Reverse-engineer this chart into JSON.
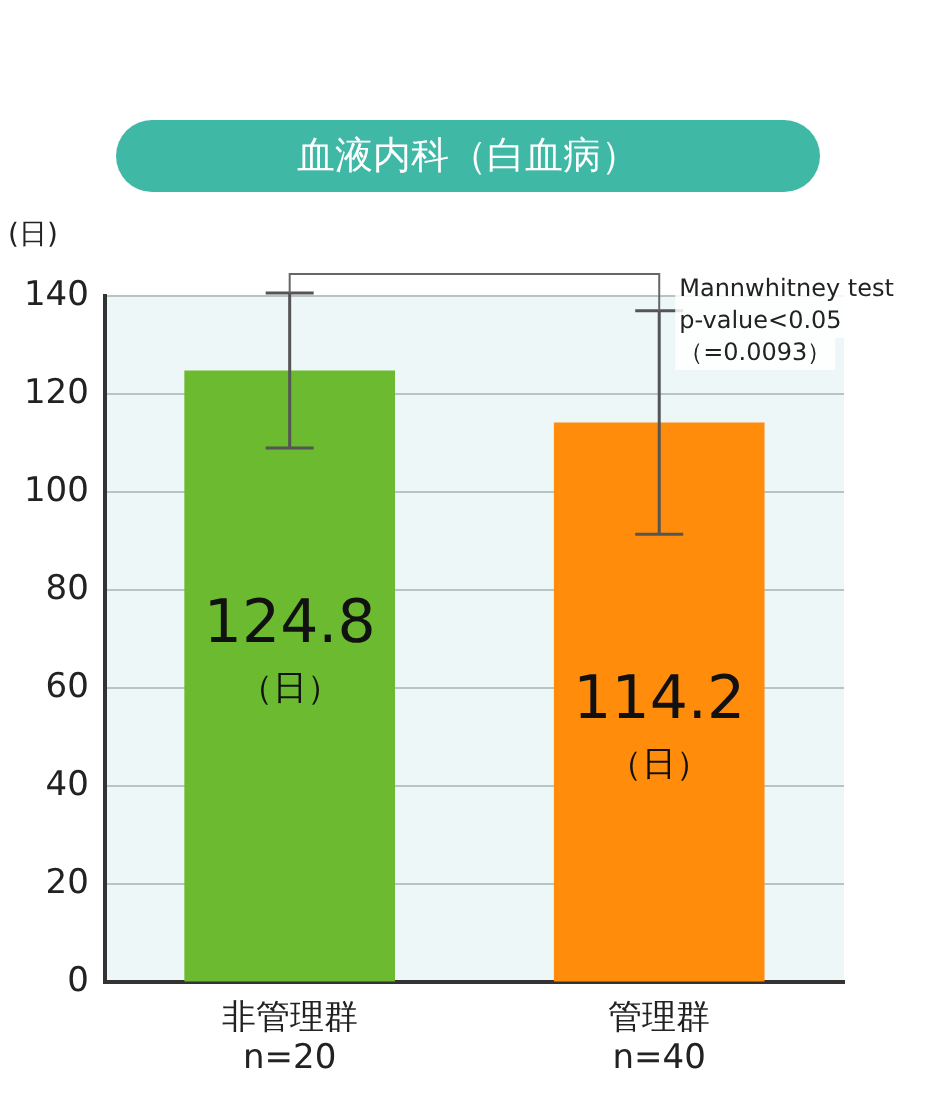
{
  "chart_data": {
    "type": "bar",
    "title": "血液内科（白血病）",
    "ylabel": "(日)",
    "categories": [
      "非管理群\nn=20",
      "管理群\nn=40"
    ],
    "values": [
      124.8,
      114.2
    ],
    "colors": [
      "#6cba2f",
      "#ff8c0a"
    ],
    "errors": [
      15.8,
      22.8
    ],
    "value_labels": [
      "124.8\n（日）",
      "114.2\n（日）"
    ],
    "annotations": [
      "Mannwhitney test",
      "p-value<0.05",
      "（=0.0093）"
    ],
    "ylim": [
      0,
      140
    ],
    "yticks": [
      0,
      20,
      40,
      60,
      80,
      100,
      120,
      140
    ],
    "grid": "y",
    "legend": false
  }
}
